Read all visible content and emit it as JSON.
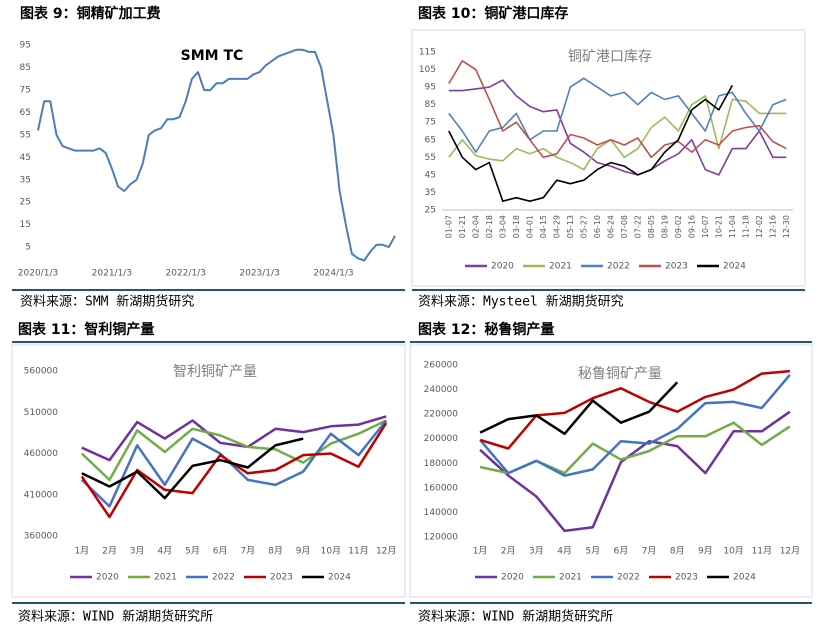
{
  "chart_data": [
    {
      "type": "line",
      "figure_title": "图表 9：铜精矿加工费",
      "annotation": "SMM TC",
      "source": "资料来源：SMM 新湖期货研究",
      "x": [
        "2020/1/3",
        "2020/2/3",
        "2020/3/3",
        "2020/4/3",
        "2020/5/3",
        "2020/6/3",
        "2020/7/3",
        "2020/8/3",
        "2020/9/3",
        "2020/10/3",
        "2020/11/3",
        "2020/12/3",
        "2021/1/3",
        "2021/2/3",
        "2021/3/3",
        "2021/4/3",
        "2021/5/3",
        "2021/6/3",
        "2021/7/3",
        "2021/8/3",
        "2021/9/3",
        "2021/10/3",
        "2021/11/3",
        "2021/12/3",
        "2022/1/3",
        "2022/2/3",
        "2022/3/3",
        "2022/4/3",
        "2022/5/3",
        "2022/6/3",
        "2022/7/3",
        "2022/8/3",
        "2022/9/3",
        "2022/10/3",
        "2022/11/3",
        "2022/12/3",
        "2023/1/3",
        "2023/2/3",
        "2023/3/3",
        "2023/4/3",
        "2023/5/3",
        "2023/6/3",
        "2023/7/3",
        "2023/8/3",
        "2023/9/3",
        "2023/10/3",
        "2023/11/3",
        "2023/12/3",
        "2024/1/3",
        "2024/2/3",
        "2024/3/3",
        "2024/4/3",
        "2024/5/3",
        "2024/6/3",
        "2024/7/3",
        "2024/8/3",
        "2024/9/3",
        "2024/10/3",
        "2024/11/3"
      ],
      "xlim": [
        "2020/1/3",
        "2024/11/3"
      ],
      "xticks": [
        "2020/1/3",
        "2021/1/3",
        "2022/1/3",
        "2023/1/3",
        "2024/1/3"
      ],
      "series": [
        {
          "color": "#4a7ebb",
          "values": [
            57,
            70,
            70,
            55,
            50,
            49,
            48,
            48,
            48,
            48,
            49,
            47,
            40,
            32,
            30,
            33,
            35,
            42,
            55,
            57,
            58,
            62,
            62,
            63,
            70,
            80,
            83,
            75,
            75,
            78,
            78,
            80,
            80,
            80,
            80,
            82,
            83,
            86,
            88,
            90,
            91,
            92,
            93,
            93,
            92,
            92,
            85,
            70,
            55,
            30,
            15,
            2,
            0,
            -1,
            3,
            6,
            6,
            5,
            10
          ]
        }
      ],
      "ylim": [
        -3,
        100
      ],
      "yticks": [
        5,
        15,
        25,
        35,
        45,
        55,
        65,
        75,
        85,
        95
      ]
    },
    {
      "type": "line",
      "figure_title": "图表 10：铜矿港口库存",
      "title": "铜矿港口库存",
      "source": "资料来源：Mysteel 新湖期货研究",
      "legend": "bottom",
      "categories": [
        "01-07",
        "01-21",
        "02-04",
        "02-18",
        "03-04",
        "03-18",
        "04-01",
        "04-15",
        "04-29",
        "05-13",
        "05-27",
        "06-10",
        "06-24",
        "07-08",
        "07-22",
        "08-05",
        "08-19",
        "09-02",
        "09-16",
        "10-07",
        "10-21",
        "11-04",
        "11-18",
        "12-02",
        "12-16",
        "12-30"
      ],
      "series": [
        {
          "name": "2020",
          "color": "#7b3f9e",
          "values": [
            93,
            93,
            94,
            95,
            99,
            90,
            84,
            81,
            82,
            63,
            58,
            52,
            50,
            47,
            45,
            48,
            53,
            57,
            65,
            48,
            45,
            60,
            60,
            70,
            55,
            55
          ]
        },
        {
          "name": "2021",
          "color": "#9bbb59",
          "values": [
            55,
            65,
            56,
            54,
            53,
            60,
            57,
            60,
            55,
            52,
            48,
            60,
            65,
            55,
            60,
            72,
            78,
            70,
            85,
            90,
            60,
            88,
            87,
            80,
            80,
            80
          ]
        },
        {
          "name": "2022",
          "color": "#4f81bd",
          "values": [
            80,
            70,
            58,
            70,
            72,
            80,
            65,
            70,
            70,
            95,
            100,
            95,
            90,
            92,
            85,
            92,
            88,
            90,
            80,
            70,
            90,
            92,
            80,
            70,
            85,
            88
          ]
        },
        {
          "name": "2023",
          "color": "#c0504d",
          "values": [
            97,
            110,
            105,
            88,
            70,
            75,
            65,
            55,
            57,
            68,
            66,
            62,
            65,
            62,
            66,
            55,
            62,
            64,
            58,
            65,
            62,
            70,
            72,
            73,
            64,
            60
          ]
        },
        {
          "name": "2024",
          "color": "#000000",
          "values": [
            70,
            55,
            48,
            52,
            30,
            32,
            30,
            32,
            42,
            40,
            42,
            48,
            52,
            50,
            45,
            48,
            58,
            65,
            82,
            88,
            82,
            96,
            null,
            null,
            null,
            null
          ]
        }
      ],
      "ylim": [
        25,
        115
      ],
      "yticks": [
        25,
        35,
        45,
        55,
        65,
        75,
        85,
        95,
        105,
        115
      ]
    },
    {
      "type": "line",
      "figure_title": "图表 11：智利铜产量",
      "title": "智利铜矿产量",
      "source": "资料来源：WIND 新湖期货研究所",
      "legend": "bottom",
      "categories": [
        "1月",
        "2月",
        "3月",
        "4月",
        "5月",
        "6月",
        "7月",
        "8月",
        "9月",
        "10月",
        "11月",
        "12月"
      ],
      "series": [
        {
          "name": "2020",
          "color": "#7030a0",
          "values": [
            467000,
            452000,
            498000,
            478000,
            500000,
            473000,
            468000,
            490000,
            486000,
            493000,
            495000,
            505000
          ]
        },
        {
          "name": "2021",
          "color": "#70ad47",
          "values": [
            460000,
            428000,
            488000,
            462000,
            490000,
            482000,
            468000,
            465000,
            449000,
            472000,
            484000,
            500000
          ]
        },
        {
          "name": "2022",
          "color": "#4472c4",
          "values": [
            428000,
            396000,
            470000,
            422000,
            478000,
            460000,
            428000,
            422000,
            438000,
            484000,
            458000,
            500000
          ]
        },
        {
          "name": "2023",
          "color": "#c00000",
          "values": [
            432000,
            383000,
            440000,
            416000,
            412000,
            458000,
            436000,
            440000,
            458000,
            460000,
            444000,
            497000
          ]
        },
        {
          "name": "2024",
          "color": "#000000",
          "values": [
            436000,
            420000,
            438000,
            406000,
            445000,
            452000,
            443000,
            470000,
            478000,
            null,
            null,
            null
          ]
        }
      ],
      "ylim": [
        360000,
        560000
      ],
      "yticks": [
        360000,
        410000,
        460000,
        510000,
        560000
      ]
    },
    {
      "type": "line",
      "figure_title": "图表 12：秘鲁铜产量",
      "title": "秘鲁铜矿产量",
      "source": "资料来源：WIND 新湖期货研究所",
      "legend": "bottom",
      "categories": [
        "1月",
        "2月",
        "3月",
        "4月",
        "5月",
        "6月",
        "7月",
        "8月",
        "9月",
        "10月",
        "11月",
        "12月"
      ],
      "series": [
        {
          "name": "2020",
          "color": "#7030a0",
          "values": [
            191000,
            170000,
            153000,
            125000,
            128000,
            181000,
            198000,
            194000,
            172000,
            206000,
            206000,
            222000
          ]
        },
        {
          "name": "2021",
          "color": "#70ad47",
          "values": [
            177000,
            172000,
            182000,
            172000,
            196000,
            183000,
            190000,
            202000,
            202000,
            213000,
            195000,
            210000
          ]
        },
        {
          "name": "2022",
          "color": "#4472c4",
          "values": [
            199000,
            172000,
            182000,
            170000,
            175000,
            198000,
            196000,
            208000,
            229000,
            230000,
            225000,
            252000
          ]
        },
        {
          "name": "2023",
          "color": "#c00000",
          "values": [
            199000,
            192000,
            219000,
            221000,
            233000,
            241000,
            230000,
            222000,
            234000,
            240000,
            253000,
            255000
          ]
        },
        {
          "name": "2024",
          "color": "#000000",
          "values": [
            205000,
            216000,
            219000,
            204000,
            231000,
            213000,
            222000,
            246000,
            null,
            null,
            null,
            null
          ]
        }
      ],
      "ylim": [
        120000,
        260000
      ],
      "yticks": [
        120000,
        140000,
        160000,
        180000,
        200000,
        220000,
        240000,
        260000
      ]
    }
  ]
}
